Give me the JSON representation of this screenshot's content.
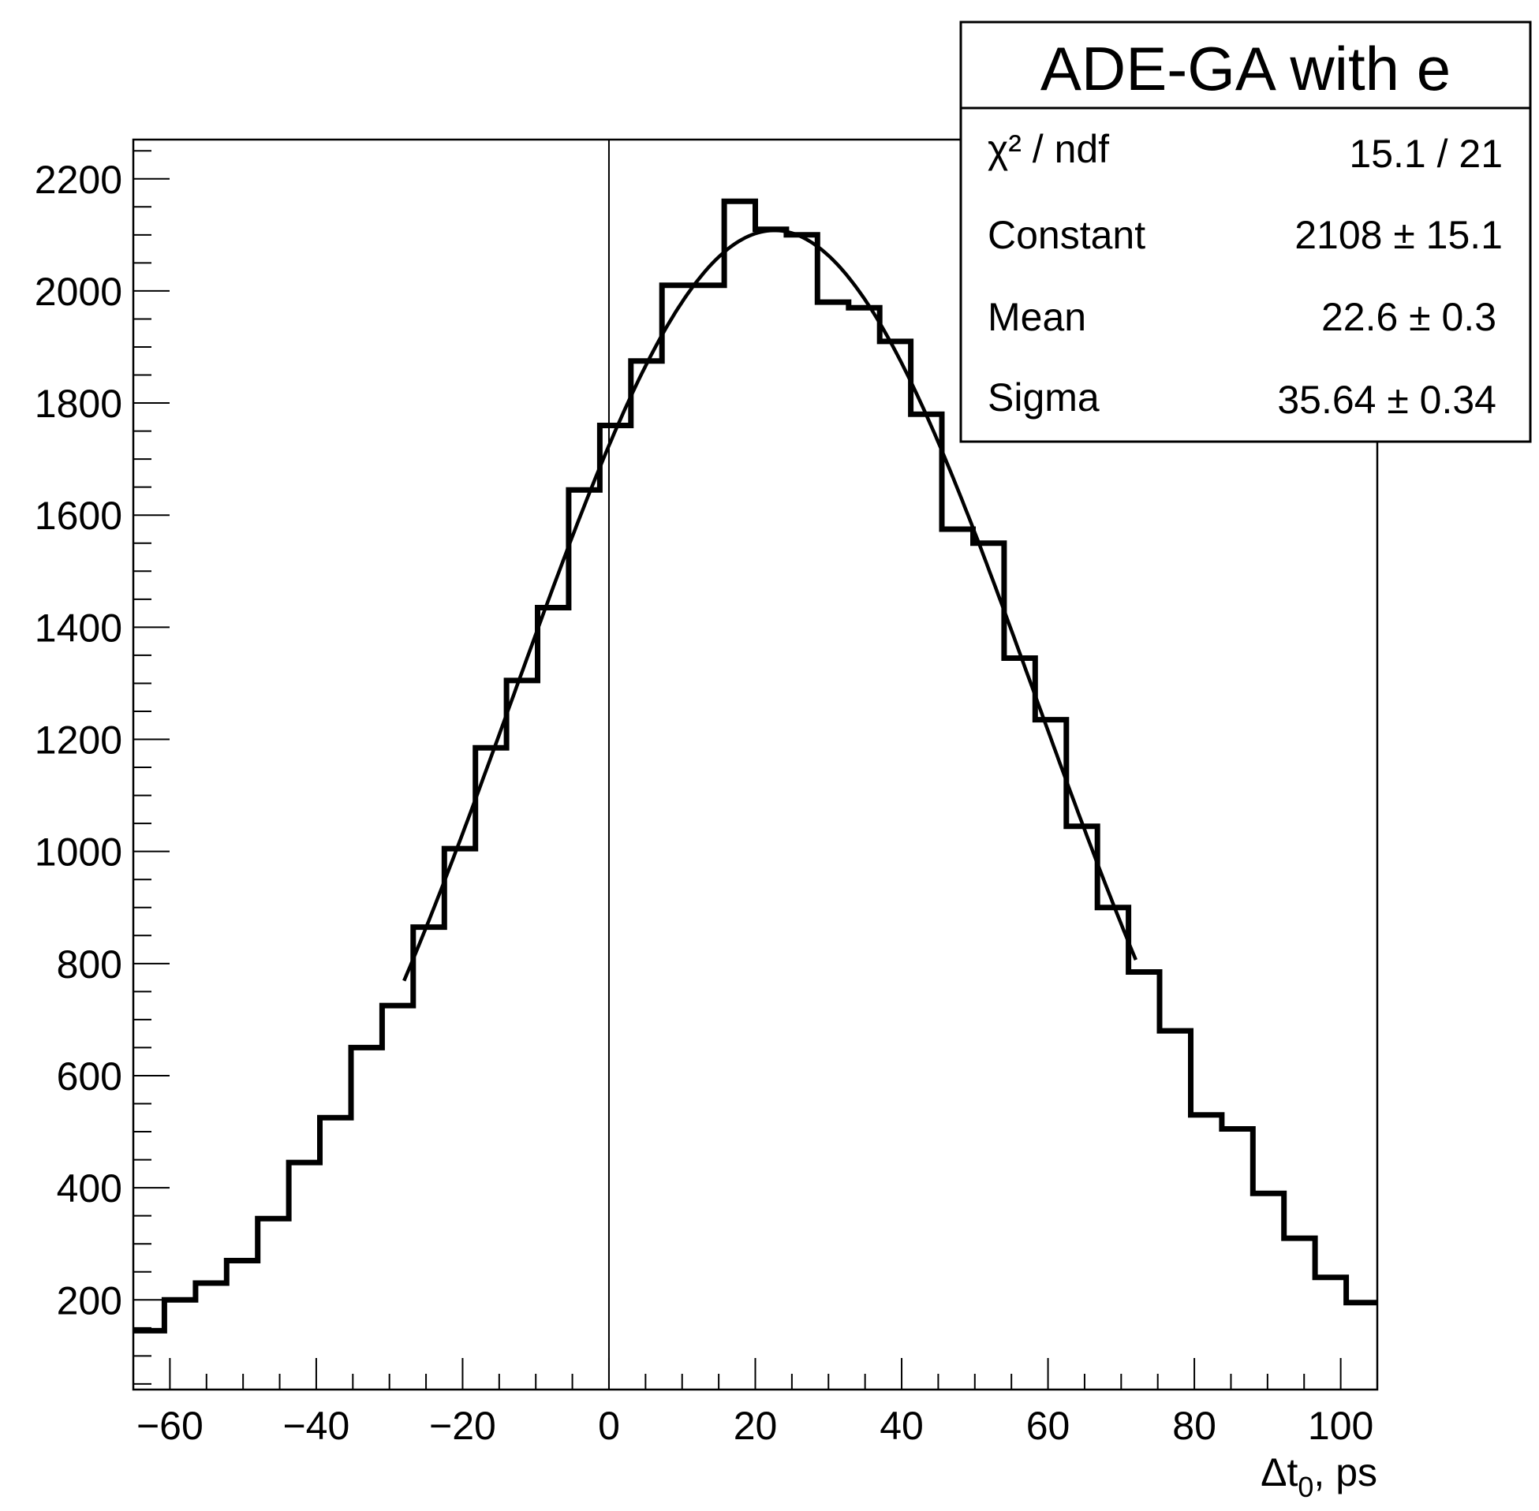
{
  "chart_data": {
    "type": "bar",
    "style": "step-histogram",
    "title": "",
    "xlabel": "Δt₀, ps",
    "xlabel_parts": {
      "main": "Δt",
      "sub": "0",
      "tail": ", ps"
    },
    "ylabel": "",
    "xlim": [
      -65,
      105
    ],
    "ylim": [
      40,
      2270
    ],
    "x_ticks": [
      -60,
      -40,
      -20,
      0,
      20,
      40,
      60,
      80,
      100
    ],
    "x_tick_labels": [
      "−60",
      "−40",
      "−20",
      "0",
      "20",
      "40",
      "60",
      "80",
      "100"
    ],
    "y_ticks": [
      200,
      400,
      600,
      800,
      1000,
      1200,
      1400,
      1600,
      1800,
      2000,
      2200
    ],
    "y_tick_labels": [
      "200",
      "400",
      "600",
      "800",
      "1000",
      "1200",
      "1400",
      "1600",
      "1800",
      "2000",
      "2200"
    ],
    "vertical_reference_line_x": 0,
    "bin_start": -65,
    "bin_width": 4.25,
    "values": [
      145,
      200,
      230,
      270,
      345,
      445,
      525,
      650,
      725,
      865,
      1005,
      1185,
      1305,
      1435,
      1645,
      1760,
      1875,
      2010,
      2010,
      2160,
      2110,
      2100,
      1980,
      1970,
      1910,
      1780,
      1575,
      1550,
      1345,
      1235,
      1045,
      900,
      785,
      680,
      530,
      505,
      390,
      310,
      240,
      195
    ],
    "fit": {
      "function": "gaus",
      "constant": 2108,
      "mean": 22.6,
      "sigma": 35.64,
      "range": [
        -28,
        72
      ]
    },
    "stats_box": {
      "title": "ADE-GA with e",
      "position": "top-right",
      "rows": [
        {
          "label": "χ² / ndf",
          "value": "15.1 / 21"
        },
        {
          "label": "Constant",
          "value": "2108 ± 15.1"
        },
        {
          "label": "Mean",
          "value": "22.6 ± 0.3"
        },
        {
          "label": "Sigma",
          "value": "35.64 ± 0.34"
        }
      ]
    },
    "grid": false,
    "colors": {
      "line": "#000000",
      "background": "#ffffff"
    }
  }
}
